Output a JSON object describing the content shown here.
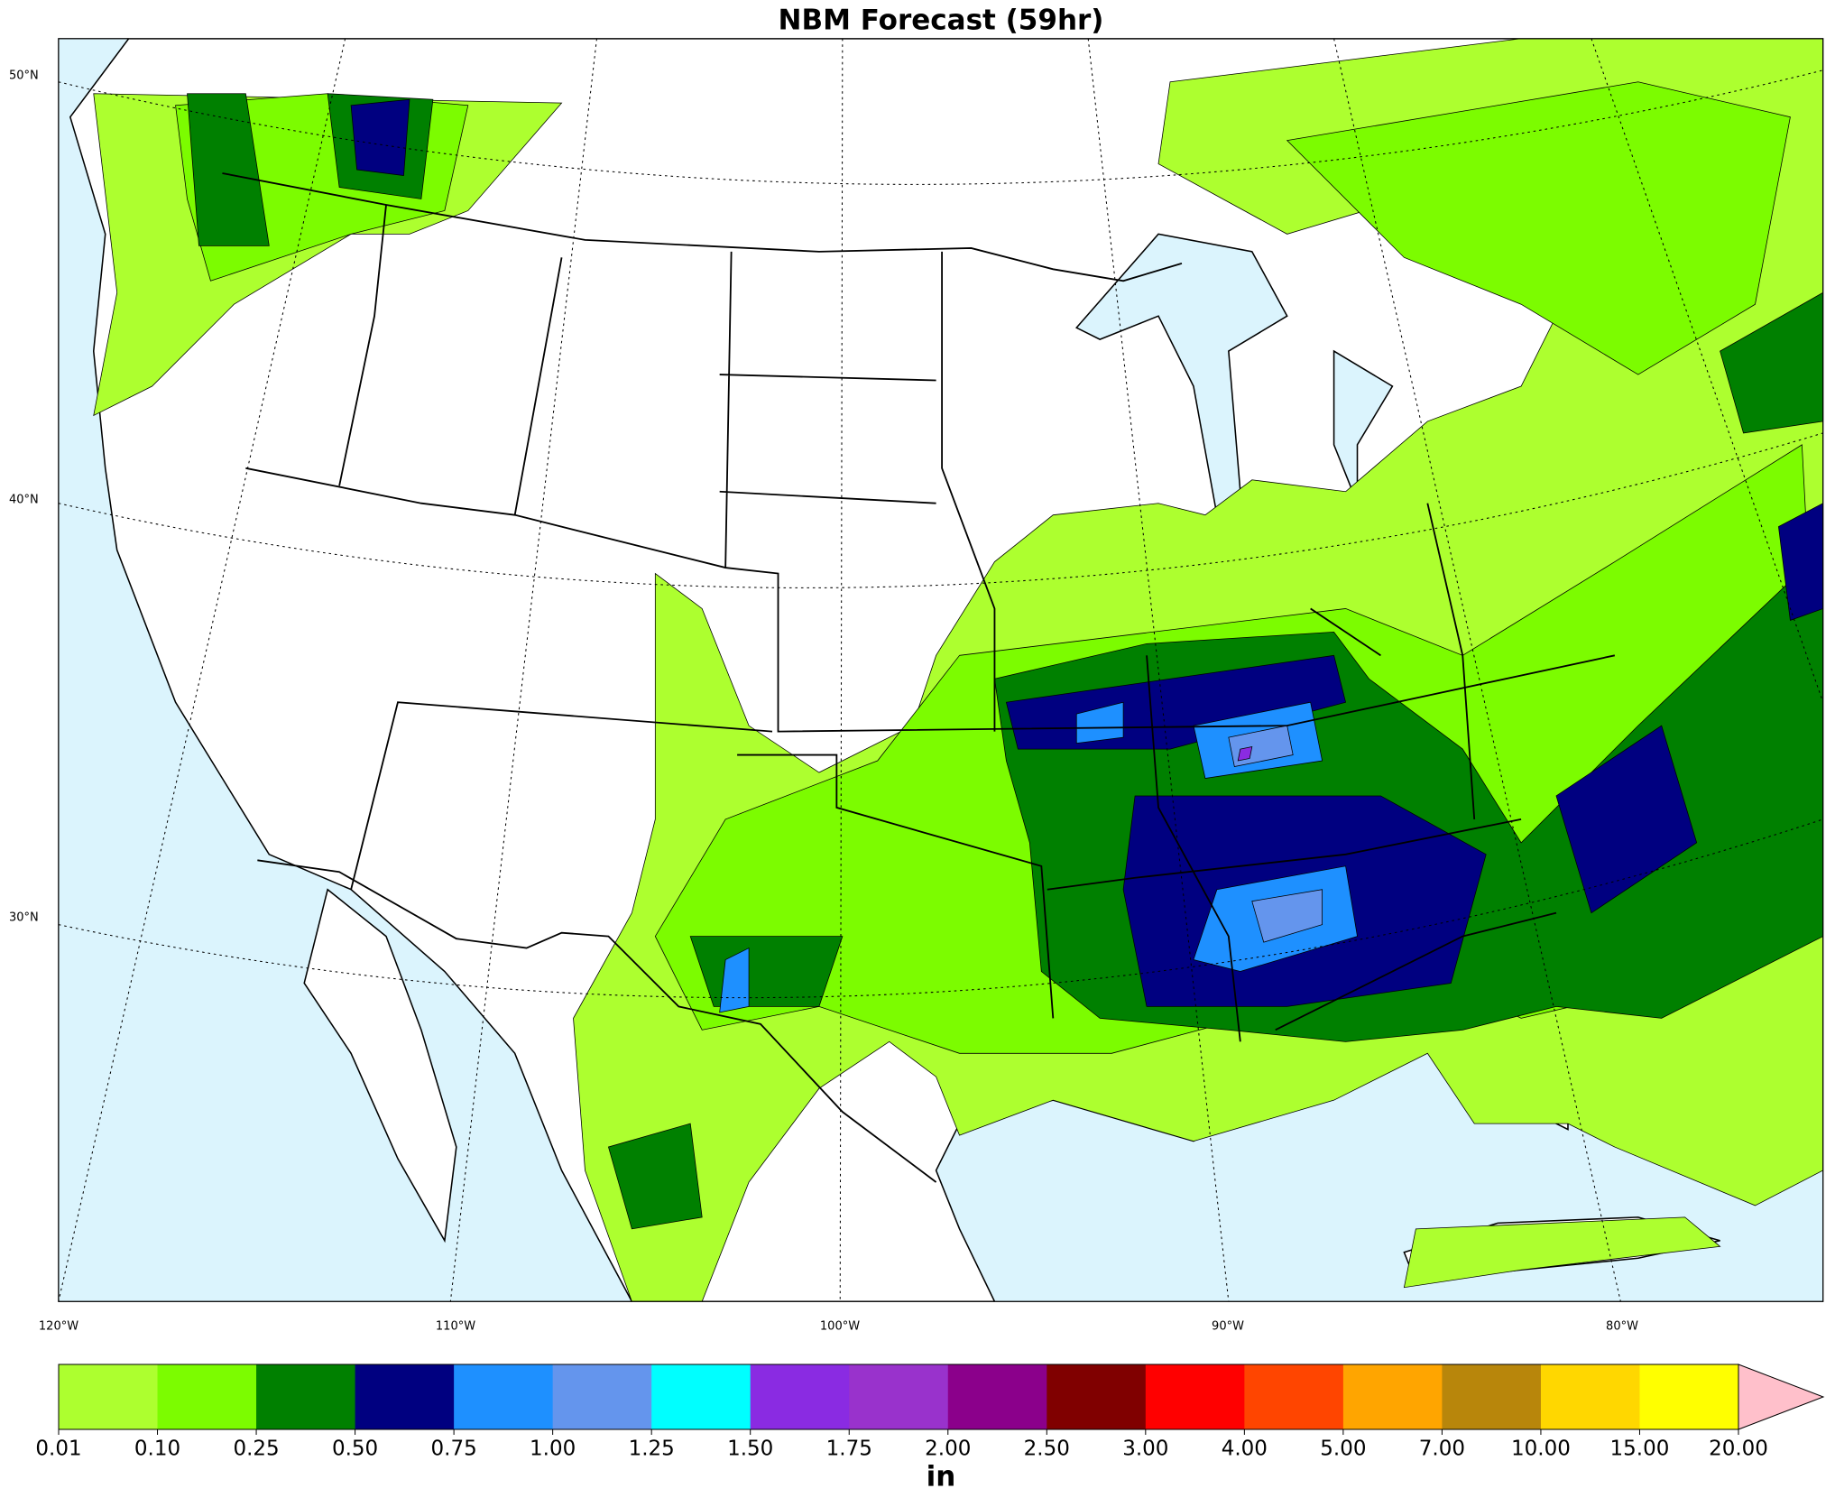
{
  "title": "NBM Forecast (59hr)",
  "map": {
    "lat_labels": [
      "50°N",
      "40°N",
      "30°N"
    ],
    "lon_labels": [
      "120°W",
      "110°W",
      "100°W",
      "90°W",
      "80°W"
    ]
  },
  "colorbar": {
    "label": "in",
    "ticks": [
      0.01,
      {
        "value": 0.1,
        "label": "0.10"
      },
      0.25,
      {
        "value": 0.5,
        "label": "0.50"
      },
      0.75,
      {
        "value": 1,
        "label": "1.00"
      },
      1.25,
      {
        "value": 1.5,
        "label": "1.50"
      },
      1.75,
      {
        "value": 2,
        "label": "2.00"
      },
      {
        "value": 2.5,
        "label": "2.50"
      },
      {
        "value": 3,
        "label": "3.00"
      },
      {
        "value": 4,
        "label": "4.00"
      },
      {
        "value": 5,
        "label": "5.00"
      },
      {
        "value": 7,
        "label": "7.00"
      },
      {
        "value": 10,
        "label": "10.00"
      },
      {
        "value": 15,
        "label": "15.00"
      },
      {
        "value": 20,
        "label": "20.00"
      }
    ],
    "colors": [
      "#adff2f",
      "#7cfc00",
      "#008000",
      "#000080",
      "#1e90ff",
      "#6495ed",
      "#00ffff",
      "#8a2be2",
      "#9932cc",
      "#8b008b",
      "#800000",
      "#ff0000",
      "#ff4500",
      "#ffa500",
      "#b8860b",
      "#ffd700",
      "#ffff00"
    ],
    "extend_color": "#ffc0cb"
  }
}
